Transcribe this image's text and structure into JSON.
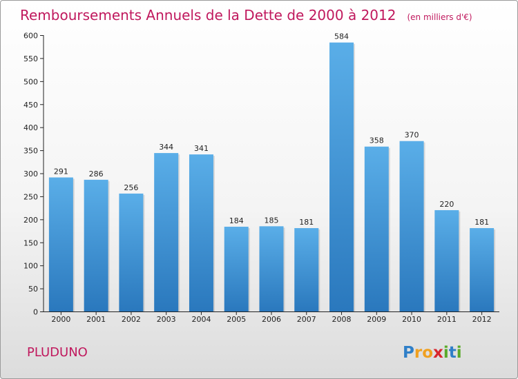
{
  "chart_data": {
    "type": "bar",
    "title": "Remboursements Annuels de la Dette de 2000 à 2012",
    "subtitle": "(en milliers d'€)",
    "categories": [
      "2000",
      "2001",
      "2002",
      "2003",
      "2004",
      "2005",
      "2006",
      "2007",
      "2008",
      "2009",
      "2010",
      "2011",
      "2012"
    ],
    "values": [
      291,
      286,
      256,
      344,
      341,
      184,
      185,
      181,
      584,
      358,
      370,
      220,
      181
    ],
    "ylim": [
      0,
      600
    ],
    "yticks": [
      0,
      50,
      100,
      150,
      200,
      250,
      300,
      350,
      400,
      450,
      500,
      550,
      600
    ],
    "xlabel": "",
    "ylabel": "",
    "grid": false,
    "bar_color_top": "#5aaee8",
    "bar_color_bottom": "#2a78bd"
  },
  "commune": "PLUDUNO",
  "logo": {
    "letters": [
      "P",
      "r",
      "o",
      "x",
      "i",
      "t",
      "i"
    ],
    "colors": [
      "#2f7fc8",
      "#f0a020",
      "#f0a020",
      "#d8262e",
      "#5aaa2a",
      "#2f7fc8",
      "#5aaa2a"
    ]
  },
  "colors": {
    "title": "#c0185d",
    "frame_border": "#9a9a9a"
  }
}
